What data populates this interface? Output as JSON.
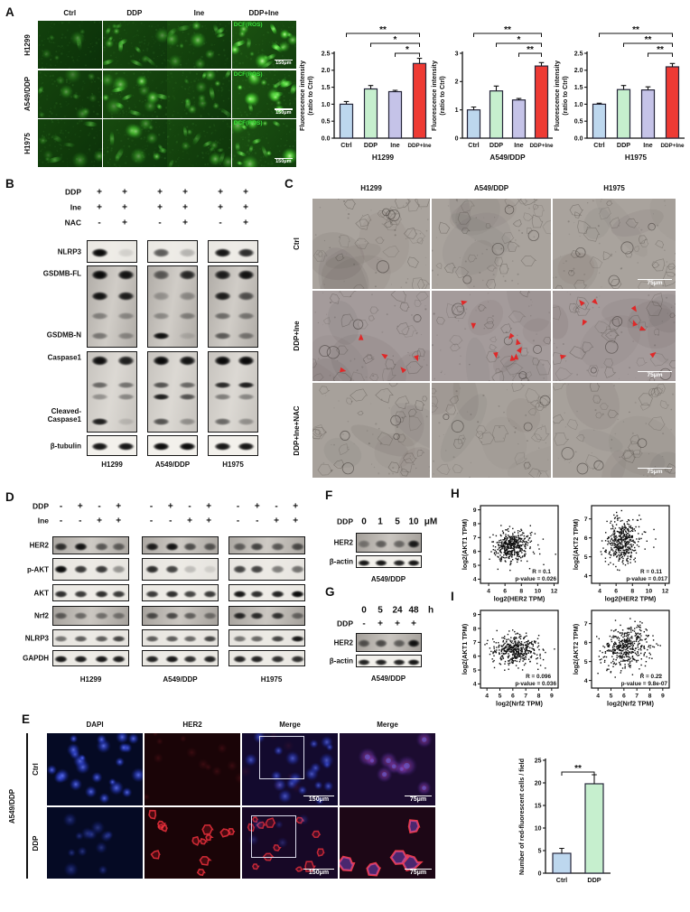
{
  "panels": {
    "a": {
      "letter": "A",
      "col_headers": [
        "Ctrl",
        "DDP",
        "Ine",
        "DDP+Ine"
      ],
      "row_headers": [
        "H1299",
        "A549/DDP",
        "H1975"
      ],
      "overlay_label": "DCF(ROS)",
      "scalebar": "150μm",
      "cell_counts": [
        [
          6,
          14,
          12,
          18
        ],
        [
          10,
          14,
          14,
          18
        ],
        [
          9,
          12,
          12,
          14
        ]
      ],
      "brightness": [
        [
          0.45,
          0.7,
          0.7,
          1.0
        ],
        [
          0.55,
          0.8,
          0.7,
          1.0
        ],
        [
          0.5,
          0.7,
          0.65,
          0.95
        ]
      ]
    },
    "b": {
      "letter": "B",
      "treatments": [
        [
          "DDP",
          "+",
          "+",
          "+",
          "+",
          "+",
          "+"
        ],
        [
          "Ine",
          "+",
          "+",
          "+",
          "+",
          "+",
          "+"
        ],
        [
          "NAC",
          "-",
          "+",
          "-",
          "+",
          "-",
          "+"
        ]
      ],
      "cell_lines": [
        "H1299",
        "A549/DDP",
        "H1975"
      ],
      "boxes": [
        {
          "labels": [
            [
              "NLRP3",
              0.5
            ]
          ],
          "smear": 0.06,
          "bands": [
            [
              0.5,
              10,
              0.95,
              0.1,
              0.6,
              0.22,
              0.9,
              0.8
            ]
          ]
        },
        {
          "labels": [
            [
              "GSDMB-FL",
              0.1
            ],
            [
              "GSDMB-N",
              0.85
            ]
          ],
          "smear": 0.42,
          "bands": [
            [
              0.1,
              11,
              0.95,
              0.9,
              0.55,
              0.8,
              0.85,
              0.9
            ],
            [
              0.36,
              10,
              0.9,
              0.85,
              0.25,
              0.3,
              0.85,
              0.6
            ],
            [
              0.6,
              8,
              0.35,
              0.3,
              0.3,
              0.35,
              0.45,
              0.4
            ],
            [
              0.85,
              8,
              0.4,
              0.3,
              0.92,
              0.12,
              0.55,
              0.4
            ]
          ]
        },
        {
          "labels": [
            [
              "Caspase1",
              0.08
            ],
            [
              "Cleaved-\nCaspase1",
              0.79
            ]
          ],
          "smear": 0.28,
          "bands": [
            [
              0.1,
              11,
              0.92,
              0.85,
              0.95,
              0.9,
              0.95,
              0.95
            ],
            [
              0.4,
              7,
              0.5,
              0.45,
              0.6,
              0.5,
              0.8,
              0.85
            ],
            [
              0.55,
              7,
              0.3,
              0.35,
              0.85,
              0.6,
              0.4,
              0.35
            ],
            [
              0.85,
              8,
              0.85,
              0.12,
              0.6,
              0.3,
              0.5,
              0.3
            ]
          ]
        },
        {
          "labels": [
            [
              "β-tubulin",
              0.5
            ]
          ],
          "smear": 0,
          "bands": [
            [
              0.5,
              9,
              0.9,
              0.9,
              0.95,
              0.95,
              0.9,
              0.9
            ]
          ]
        }
      ]
    },
    "c": {
      "letter": "C",
      "col_headers": [
        "H1299",
        "A549/DDP",
        "H1975"
      ],
      "row_labels": [
        "Ctrl",
        "DDP+Ine",
        "DDP+Ine+NAC"
      ],
      "scalebar": "75μm",
      "arrow_counts": [
        [
          0,
          0,
          0
        ],
        [
          5,
          8,
          8
        ],
        [
          0,
          0,
          0
        ]
      ]
    },
    "d": {
      "letter": "D",
      "treatments": [
        [
          "DDP",
          "-",
          "+",
          "-",
          "+",
          "-",
          "+",
          "-",
          "+",
          "-",
          "+",
          "-",
          "+"
        ],
        [
          "Ine",
          "-",
          "-",
          "+",
          "+",
          "-",
          "-",
          "+",
          "+",
          "-",
          "-",
          "+",
          "+"
        ]
      ],
      "cell_lines": [
        "H1299",
        "A549/DDP",
        "H1975"
      ],
      "boxes": [
        {
          "labels": [
            [
              "HER2",
              0.5
            ]
          ],
          "smear": 0.45,
          "bands": [
            [
              0.5,
              9,
              0.75,
              0.9,
              0.55,
              0.5,
              0.85,
              0.9,
              0.6,
              0.55,
              0.5,
              0.65,
              0.55,
              0.6
            ]
          ]
        },
        {
          "labels": [
            [
              "p-AKT",
              0.5
            ]
          ],
          "smear": 0.08,
          "bands": [
            [
              0.45,
              9,
              0.95,
              0.75,
              0.75,
              0.35,
              0.8,
              0.7,
              0.18,
              0.1,
              0.7,
              0.7,
              0.45,
              0.5
            ]
          ]
        },
        {
          "labels": [
            [
              "AKT",
              0.5
            ]
          ],
          "smear": 0.05,
          "bands": [
            [
              0.5,
              8,
              0.8,
              0.75,
              0.8,
              0.75,
              0.75,
              0.8,
              0.7,
              0.75,
              0.9,
              0.8,
              0.85,
              0.95
            ]
          ]
        },
        {
          "labels": [
            [
              "Nrf2",
              0.5
            ]
          ],
          "smear": 0.48,
          "bands": [
            [
              0.45,
              8,
              0.5,
              0.45,
              0.42,
              0.38,
              0.6,
              0.62,
              0.5,
              0.4,
              0.8,
              0.78,
              0.75,
              0.45
            ]
          ]
        },
        {
          "labels": [
            [
              "NLRP3",
              0.5
            ]
          ],
          "smear": 0.08,
          "bands": [
            [
              0.5,
              7,
              0.5,
              0.6,
              0.6,
              0.7,
              0.6,
              0.6,
              0.55,
              0.7,
              0.5,
              0.55,
              0.7,
              0.9
            ]
          ]
        },
        {
          "labels": [
            [
              "GAPDH",
              0.5
            ]
          ],
          "smear": 0.06,
          "bands": [
            [
              0.5,
              8,
              0.9,
              0.88,
              0.9,
              0.88,
              0.85,
              0.9,
              0.8,
              0.85,
              0.85,
              0.85,
              0.8,
              0.8
            ]
          ]
        }
      ]
    },
    "e": {
      "letter": "E",
      "side_label": "A549/DDP",
      "col_headers": [
        "DAPI",
        "HER2",
        "Merge",
        "Merge"
      ],
      "row_labels": [
        "Ctrl",
        "DDP"
      ],
      "scalebar_merge": "150μm",
      "scalebar_zoom": "75μm"
    },
    "f": {
      "letter": "F",
      "drug_label": "DDP",
      "doses": [
        "0",
        "1",
        "5",
        "10"
      ],
      "unit": "μM",
      "cell_line": "A549/DDP",
      "boxes": [
        {
          "labels": [
            [
              "HER2",
              0.5
            ]
          ],
          "smear": 0.5,
          "bands": [
            [
              0.5,
              9,
              0.35,
              0.5,
              0.45,
              0.85
            ]
          ]
        },
        {
          "labels": [
            [
              "β-actin",
              0.5
            ]
          ],
          "smear": 0,
          "bands": [
            [
              0.5,
              7,
              0.9,
              0.9,
              0.85,
              0.9
            ]
          ]
        }
      ]
    },
    "g": {
      "letter": "G",
      "times": [
        "0",
        "5",
        "24",
        "48"
      ],
      "unit": "h",
      "drug_label": "DDP",
      "drug_marks": [
        "-",
        "+",
        "+",
        "+"
      ],
      "cell_line": "A549/DDP",
      "boxes": [
        {
          "labels": [
            [
              "HER2",
              0.5
            ]
          ],
          "smear": 0.5,
          "bands": [
            [
              0.5,
              9,
              0.55,
              0.6,
              0.5,
              0.9
            ]
          ]
        },
        {
          "labels": [
            [
              "β-actin",
              0.5
            ]
          ],
          "smear": 0,
          "bands": [
            [
              0.5,
              7,
              0.85,
              0.85,
              0.85,
              0.9
            ]
          ]
        }
      ]
    },
    "h": {
      "letter": "H"
    },
    "i": {
      "letter": "I"
    }
  },
  "chart_data": [
    {
      "type": "bar",
      "title": "H1299",
      "ylabel": "Fluorescence intensity\n(ratio to Ctrl)",
      "categories": [
        "Ctrl",
        "DDP",
        "Ine",
        "DDP+Ine"
      ],
      "values": [
        1.0,
        1.45,
        1.37,
        2.2
      ],
      "errors": [
        0.08,
        0.1,
        0.04,
        0.15
      ],
      "ylim": [
        0,
        2.5
      ],
      "yticks": [
        "0.0",
        "0.5",
        "1.0",
        "1.5",
        "2.0",
        "2.5"
      ],
      "bar_colors": [
        "#bdd7ee",
        "#c6efce",
        "#c5c3e8",
        "#ee3a34"
      ],
      "sig": [
        [
          "Ctrl",
          "DDP+Ine",
          "**"
        ],
        [
          "DDP",
          "DDP+Ine",
          "*"
        ],
        [
          "Ine",
          "DDP+Ine",
          "*"
        ]
      ]
    },
    {
      "type": "bar",
      "title": "A549/DDP",
      "ylabel": "Fluorescence intensity\n(ratio to Ctrl)",
      "categories": [
        "Ctrl",
        "DDP",
        "Ine",
        "DDP+Ine"
      ],
      "values": [
        1.0,
        1.67,
        1.35,
        2.55
      ],
      "errors": [
        0.1,
        0.17,
        0.05,
        0.12
      ],
      "ylim": [
        0,
        3
      ],
      "yticks": [
        "0",
        "1",
        "2",
        "3"
      ],
      "bar_colors": [
        "#bdd7ee",
        "#c6efce",
        "#c5c3e8",
        "#ee3a34"
      ],
      "sig": [
        [
          "Ctrl",
          "DDP+Ine",
          "**"
        ],
        [
          "DDP",
          "DDP+Ine",
          "*"
        ],
        [
          "Ine",
          "DDP+Ine",
          "**"
        ]
      ]
    },
    {
      "type": "bar",
      "title": "H1975",
      "ylabel": "Fluorescence intensity\n(ratio to Ctrl)",
      "categories": [
        "Ctrl",
        "DDP",
        "Ine",
        "DDP+Ine"
      ],
      "values": [
        1.0,
        1.43,
        1.42,
        2.1
      ],
      "errors": [
        0.03,
        0.12,
        0.09,
        0.1
      ],
      "ylim": [
        0,
        2.5
      ],
      "yticks": [
        "0.0",
        "0.5",
        "1.0",
        "1.5",
        "2.0",
        "2.5"
      ],
      "bar_colors": [
        "#bdd7ee",
        "#c6efce",
        "#c5c3e8",
        "#ee3a34"
      ],
      "sig": [
        [
          "Ctrl",
          "DDP+Ine",
          "**"
        ],
        [
          "DDP",
          "DDP+Ine",
          "**"
        ],
        [
          "Ine",
          "DDP+Ine",
          "**"
        ]
      ]
    },
    {
      "type": "scatter",
      "xlabel": "log2(HER2 TPM)",
      "ylabel": "log2(AKT1 TPM)",
      "xticks": [
        4,
        6,
        8,
        10,
        12
      ],
      "yticks": [
        4,
        5,
        6,
        7,
        8,
        9
      ],
      "xlim": [
        3,
        12.5
      ],
      "ylim": [
        3.7,
        9.3
      ],
      "r_label": "R = 0.1",
      "p_label": "p-value = 0.026",
      "n_points": 430,
      "cluster": {
        "cx": 6.7,
        "cy": 6.4,
        "sx": 1.0,
        "sy": 0.55,
        "r": 0.1
      },
      "seed": 11
    },
    {
      "type": "scatter",
      "xlabel": "log2(HER2 TPM)",
      "ylabel": "log2(AKT2 TPM)",
      "xticks": [
        4,
        6,
        8,
        10,
        12
      ],
      "yticks": [
        4,
        5,
        6,
        7
      ],
      "xlim": [
        3,
        12.5
      ],
      "ylim": [
        3.6,
        7.7
      ],
      "r_label": "R = 0.11",
      "p_label": "p-value = 0.017",
      "n_points": 430,
      "cluster": {
        "cx": 6.7,
        "cy": 5.8,
        "sx": 1.0,
        "sy": 0.6,
        "r": 0.11
      },
      "seed": 22
    },
    {
      "type": "scatter",
      "xlabel": "log2(Nrf2 TPM)",
      "ylabel": "log2(AKT1 TPM)",
      "xticks": [
        4,
        5,
        6,
        7,
        8,
        9
      ],
      "yticks": [
        4,
        5,
        6,
        7,
        8,
        9
      ],
      "xlim": [
        3.5,
        9.5
      ],
      "ylim": [
        3.7,
        9.3
      ],
      "r_label": "R = 0.096",
      "p_label": "p-value = 0.036",
      "n_points": 430,
      "cluster": {
        "cx": 6.1,
        "cy": 6.5,
        "sx": 0.85,
        "sy": 0.55,
        "r": 0.096
      },
      "seed": 33
    },
    {
      "type": "scatter",
      "xlabel": "log2(Nrf2 TPM)",
      "ylabel": "log2(AKT2 TPM)",
      "xticks": [
        4,
        5,
        6,
        7,
        8,
        9
      ],
      "yticks": [
        4,
        5,
        6,
        7
      ],
      "xlim": [
        3.5,
        9.5
      ],
      "ylim": [
        3.6,
        7.7
      ],
      "r_label": "R = 0.22",
      "p_label": "p-value = 9.8e-07",
      "n_points": 430,
      "cluster": {
        "cx": 6.1,
        "cy": 5.8,
        "sx": 0.85,
        "sy": 0.6,
        "r": 0.22
      },
      "seed": 44
    },
    {
      "type": "bar",
      "title": "",
      "ylabel": "Number of red-fluorescent cells / field",
      "categories": [
        "Ctrl",
        "DDP"
      ],
      "values": [
        4.4,
        19.8
      ],
      "errors": [
        1.1,
        2.0
      ],
      "ylim": [
        0,
        25
      ],
      "yticks": [
        "0",
        "5",
        "10",
        "15",
        "20",
        "25"
      ],
      "bar_colors": [
        "#bdd7ee",
        "#c6efce"
      ],
      "sig": [
        [
          "Ctrl",
          "DDP",
          "**"
        ]
      ]
    }
  ]
}
